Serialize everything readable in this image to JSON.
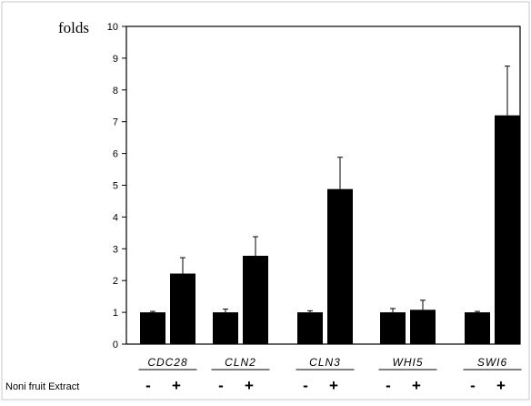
{
  "chart_data": {
    "type": "bar",
    "ylabel": "folds",
    "ylim": [
      0,
      10
    ],
    "yticks": [
      "0",
      "1",
      "2",
      "3",
      "4",
      "5",
      "6",
      "7",
      "8",
      "9",
      "10"
    ],
    "categories": [
      "CDC28",
      "CLN2",
      "CLN3",
      "WHI5",
      "SWI6"
    ],
    "treatment_label": "Noni fruit Extract",
    "conditions": [
      "-",
      "+"
    ],
    "series": [
      {
        "values": [
          1.0,
          1.0,
          1.0,
          1.0,
          1.0
        ],
        "errors": [
          0.03,
          0.1,
          0.05,
          0.12,
          0.03
        ]
      },
      {
        "values": [
          2.22,
          2.78,
          4.88,
          1.08,
          7.2
        ],
        "errors": [
          0.5,
          0.6,
          1.0,
          0.3,
          1.55
        ]
      }
    ],
    "grid": false,
    "bar_color": "#000000"
  }
}
